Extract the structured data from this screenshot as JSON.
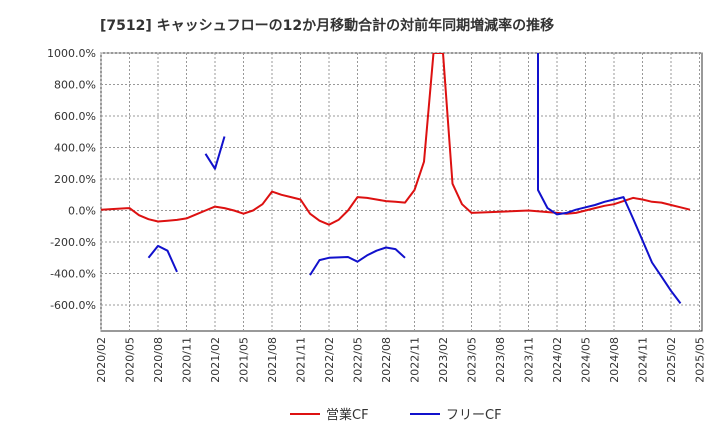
{
  "chart_data": {
    "type": "line",
    "title": "[7512]  キャッシュフローの12か月移動合計の対前年同期増減率の推移",
    "xlabel": "",
    "ylabel": "",
    "ylim": [
      -760,
      1000
    ],
    "yticks": [
      1000,
      800,
      600,
      400,
      200,
      0,
      -200,
      -400,
      -600
    ],
    "ytick_labels": [
      "1000.0%",
      "800.0%",
      "600.0%",
      "400.0%",
      "200.0%",
      "0.0%",
      "-200.0%",
      "-400.0%",
      "-600.0%"
    ],
    "xticks": [
      "2020/02",
      "2020/05",
      "2020/08",
      "2020/11",
      "2021/02",
      "2021/05",
      "2021/08",
      "2021/11",
      "2022/02",
      "2022/05",
      "2022/08",
      "2022/11",
      "2023/02",
      "2023/05",
      "2023/08",
      "2023/11",
      "2024/02",
      "2024/05",
      "2024/08",
      "2024/11",
      "2025/02",
      "2025/05"
    ],
    "x_index_note": "month index from 2020/02 = 0",
    "series": [
      {
        "name": "営業CF",
        "color": "#dd1111",
        "points": [
          [
            0,
            5
          ],
          [
            3,
            15
          ],
          [
            4,
            -30
          ],
          [
            5,
            -55
          ],
          [
            6,
            -70
          ],
          [
            7,
            -65
          ],
          [
            8,
            -60
          ],
          [
            9,
            -50
          ],
          [
            10,
            -25
          ],
          [
            11,
            0
          ],
          [
            12,
            25
          ],
          [
            13,
            15
          ],
          [
            14,
            0
          ],
          [
            15,
            -20
          ],
          [
            16,
            0
          ],
          [
            17,
            40
          ],
          [
            18,
            120
          ],
          [
            19,
            100
          ],
          [
            20,
            85
          ],
          [
            21,
            70
          ],
          [
            22,
            -20
          ],
          [
            23,
            -65
          ],
          [
            24,
            -90
          ],
          [
            25,
            -60
          ],
          [
            26,
            0
          ],
          [
            27,
            85
          ],
          [
            28,
            80
          ],
          [
            29,
            70
          ],
          [
            30,
            60
          ],
          [
            31,
            55
          ],
          [
            32,
            50
          ],
          [
            33,
            130
          ],
          [
            34,
            310
          ],
          [
            35,
            1000
          ],
          [
            36,
            1000
          ],
          [
            37,
            170
          ],
          [
            38,
            40
          ],
          [
            39,
            -15
          ],
          [
            41,
            -10
          ],
          [
            45,
            0
          ],
          [
            48,
            -15
          ],
          [
            49,
            -20
          ],
          [
            50,
            -15
          ],
          [
            51,
            0
          ],
          [
            52,
            15
          ],
          [
            53,
            30
          ],
          [
            54,
            40
          ],
          [
            55,
            60
          ],
          [
            56,
            80
          ],
          [
            57,
            70
          ],
          [
            58,
            55
          ],
          [
            59,
            50
          ],
          [
            60,
            35
          ],
          [
            61,
            20
          ],
          [
            62,
            5
          ]
        ]
      },
      {
        "name": "フリーCF",
        "color": "#1111cc",
        "segments": [
          [
            [
              5,
              -300
            ],
            [
              6,
              -225
            ],
            [
              7,
              -255
            ],
            [
              8,
              -390
            ]
          ],
          [
            [
              11,
              360
            ],
            [
              12,
              265
            ],
            [
              13,
              470
            ]
          ],
          [
            [
              22,
              -410
            ],
            [
              23,
              -315
            ],
            [
              24,
              -300
            ],
            [
              26,
              -295
            ],
            [
              27,
              -325
            ],
            [
              28,
              -285
            ],
            [
              29,
              -255
            ],
            [
              30,
              -235
            ],
            [
              31,
              -245
            ],
            [
              32,
              -300
            ]
          ],
          [
            [
              46,
              1000
            ],
            [
              46,
              130
            ],
            [
              47,
              15
            ],
            [
              48,
              -25
            ],
            [
              49,
              -15
            ],
            [
              50,
              5
            ],
            [
              51,
              20
            ],
            [
              52,
              35
            ],
            [
              53,
              55
            ],
            [
              54,
              70
            ],
            [
              55,
              85
            ],
            [
              56,
              -50
            ],
            [
              57,
              -190
            ],
            [
              58,
              -330
            ],
            [
              59,
              -420
            ],
            [
              60,
              -510
            ],
            [
              61,
              -590
            ]
          ]
        ]
      }
    ],
    "legend": [
      "営業CF",
      "フリーCF"
    ],
    "legend_position": "bottom",
    "grid": true
  }
}
